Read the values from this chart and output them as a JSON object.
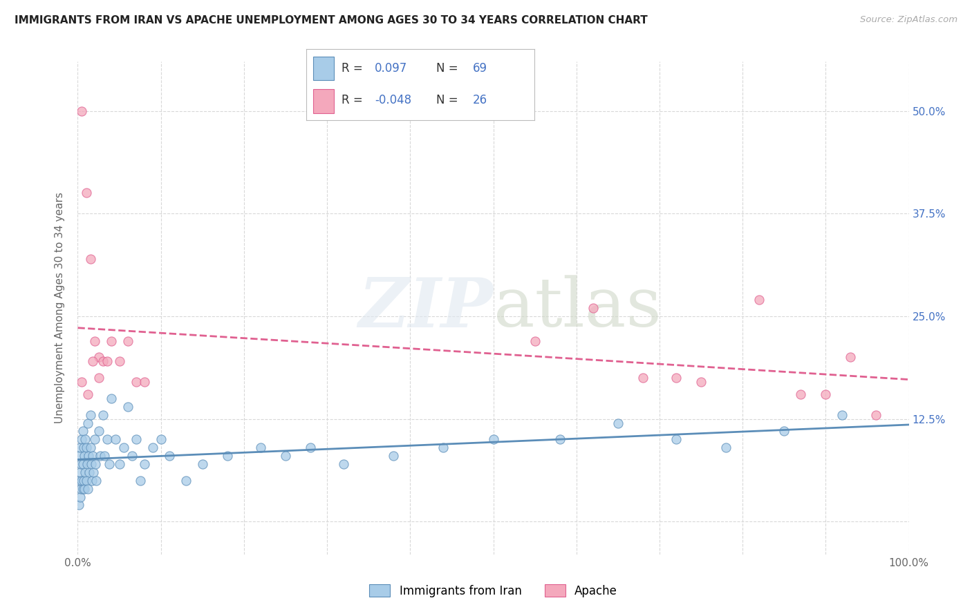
{
  "title": "IMMIGRANTS FROM IRAN VS APACHE UNEMPLOYMENT AMONG AGES 30 TO 34 YEARS CORRELATION CHART",
  "source": "Source: ZipAtlas.com",
  "ylabel": "Unemployment Among Ages 30 to 34 years",
  "xlim": [
    0.0,
    1.0
  ],
  "ylim": [
    -0.04,
    0.56
  ],
  "iran_R": 0.097,
  "iran_N": 69,
  "apache_R": -0.048,
  "apache_N": 26,
  "iran_color": "#a8cce8",
  "apache_color": "#f4a8bc",
  "iran_trend_color": "#5b8db8",
  "apache_trend_color": "#e06090",
  "background_color": "#ffffff",
  "grid_color": "#d8d8d8",
  "right_tick_color": "#4472c4",
  "label_color": "#666666",
  "title_color": "#222222",
  "iran_scatter_x": [
    0.001,
    0.002,
    0.002,
    0.003,
    0.003,
    0.003,
    0.004,
    0.004,
    0.005,
    0.005,
    0.006,
    0.006,
    0.006,
    0.007,
    0.007,
    0.008,
    0.008,
    0.009,
    0.009,
    0.01,
    0.01,
    0.011,
    0.012,
    0.012,
    0.013,
    0.014,
    0.015,
    0.015,
    0.016,
    0.017,
    0.018,
    0.019,
    0.02,
    0.021,
    0.022,
    0.025,
    0.027,
    0.03,
    0.032,
    0.035,
    0.038,
    0.04,
    0.045,
    0.05,
    0.055,
    0.06,
    0.065,
    0.07,
    0.075,
    0.08,
    0.09,
    0.1,
    0.11,
    0.13,
    0.15,
    0.18,
    0.22,
    0.25,
    0.28,
    0.32,
    0.38,
    0.44,
    0.5,
    0.58,
    0.65,
    0.72,
    0.78,
    0.85,
    0.92
  ],
  "iran_scatter_y": [
    0.02,
    0.05,
    0.08,
    0.03,
    0.06,
    0.09,
    0.04,
    0.07,
    0.05,
    0.1,
    0.04,
    0.07,
    0.11,
    0.05,
    0.09,
    0.04,
    0.08,
    0.06,
    0.1,
    0.05,
    0.09,
    0.07,
    0.04,
    0.12,
    0.08,
    0.06,
    0.09,
    0.13,
    0.07,
    0.05,
    0.08,
    0.06,
    0.1,
    0.07,
    0.05,
    0.11,
    0.08,
    0.13,
    0.08,
    0.1,
    0.07,
    0.15,
    0.1,
    0.07,
    0.09,
    0.14,
    0.08,
    0.1,
    0.05,
    0.07,
    0.09,
    0.1,
    0.08,
    0.05,
    0.07,
    0.08,
    0.09,
    0.08,
    0.09,
    0.07,
    0.08,
    0.09,
    0.1,
    0.1,
    0.12,
    0.1,
    0.09,
    0.11,
    0.13
  ],
  "apache_scatter_x": [
    0.005,
    0.01,
    0.015,
    0.02,
    0.025,
    0.03,
    0.04,
    0.05,
    0.06,
    0.07,
    0.08,
    0.55,
    0.62,
    0.68,
    0.72,
    0.75,
    0.82,
    0.87,
    0.9,
    0.93,
    0.96,
    0.005,
    0.012,
    0.018,
    0.025,
    0.035
  ],
  "apache_scatter_y": [
    0.5,
    0.4,
    0.32,
    0.22,
    0.2,
    0.195,
    0.22,
    0.195,
    0.22,
    0.17,
    0.17,
    0.22,
    0.26,
    0.175,
    0.175,
    0.17,
    0.27,
    0.155,
    0.155,
    0.2,
    0.13,
    0.17,
    0.155,
    0.195,
    0.175,
    0.195
  ]
}
